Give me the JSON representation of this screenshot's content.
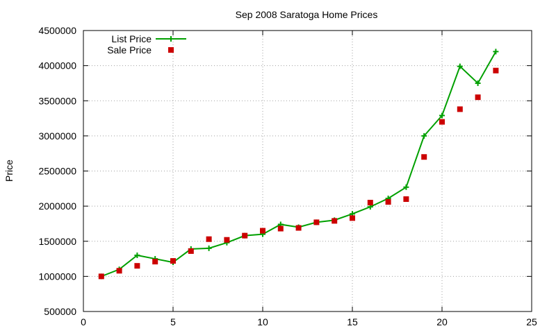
{
  "chart_data": {
    "type": "line",
    "title": "Sep 2008 Saratoga Home Prices",
    "xlabel": "",
    "ylabel": "Price",
    "xlim": [
      0,
      25
    ],
    "ylim": [
      500000,
      4500000
    ],
    "xticks": [
      0,
      5,
      10,
      15,
      20,
      25
    ],
    "yticks": [
      500000,
      1000000,
      1500000,
      2000000,
      2500000,
      3000000,
      3500000,
      4000000,
      4500000
    ],
    "grid": true,
    "legend_position": "top-left",
    "series": [
      {
        "name": "List Price",
        "style": "line-with-plus-markers",
        "color": "#00a000",
        "x": [
          1,
          2,
          3,
          4,
          5,
          6,
          7,
          8,
          9,
          10,
          11,
          12,
          13,
          14,
          15,
          16,
          17,
          18,
          19,
          20,
          21,
          22,
          23
        ],
        "y": [
          1000000,
          1100000,
          1300000,
          1250000,
          1200000,
          1390000,
          1400000,
          1480000,
          1580000,
          1600000,
          1740000,
          1700000,
          1770000,
          1800000,
          1890000,
          1990000,
          2110000,
          2270000,
          3000000,
          3290000,
          3990000,
          3750000,
          4200000
        ]
      },
      {
        "name": "Sale Price",
        "style": "square-markers",
        "color": "#cc0000",
        "x": [
          1,
          2,
          3,
          4,
          5,
          6,
          7,
          8,
          9,
          10,
          11,
          12,
          13,
          14,
          15,
          16,
          17,
          18,
          19,
          20,
          21,
          22,
          23
        ],
        "y": [
          1000000,
          1080000,
          1150000,
          1210000,
          1220000,
          1360000,
          1530000,
          1520000,
          1580000,
          1650000,
          1680000,
          1690000,
          1770000,
          1790000,
          1830000,
          2050000,
          2060000,
          2100000,
          2700000,
          3200000,
          3380000,
          3550000,
          3930000
        ]
      }
    ]
  }
}
